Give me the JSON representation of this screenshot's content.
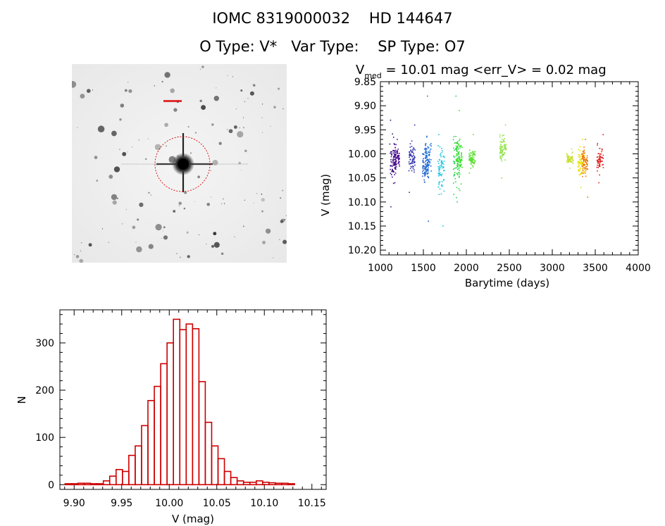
{
  "header": {
    "line1": "IOMC 8319000032    HD 144647",
    "line2": "O Type: V*   Var Type:    SP Type: O7"
  },
  "lightcurve_title": {
    "prefix": "V",
    "subscript": "med",
    "rest": " = 10.01 mag <err_V> = 0.02 mag"
  },
  "chart_data": [
    {
      "type": "scatter",
      "title": "",
      "xlabel": "Barytime (days)",
      "ylabel": "V (mag)",
      "xlim": [
        1000,
        4000
      ],
      "ylim": [
        10.21,
        9.85
      ],
      "y_inverted": true,
      "xticks": [
        1000,
        1500,
        2000,
        2500,
        3000,
        3500,
        4000
      ],
      "xtick_labels": [
        "1000",
        "1500",
        "2000",
        "2500",
        "3000",
        "3500",
        "4000"
      ],
      "yticks": [
        9.85,
        9.9,
        9.95,
        10.0,
        10.05,
        10.1,
        10.15,
        10.2
      ],
      "ytick_labels": [
        "9.85",
        "9.90",
        "9.95",
        "10.00",
        "10.05",
        "10.10",
        "10.15",
        "10.20"
      ],
      "series": [
        {
          "x": 1140,
          "ymin": 9.93,
          "ymax": 10.11,
          "center": 10.02,
          "color": "#3d0a86"
        },
        {
          "x": 1180,
          "ymin": 9.97,
          "ymax": 10.06,
          "center": 10.01,
          "color": "#4b0e8f"
        },
        {
          "x": 1360,
          "ymin": 9.94,
          "ymax": 10.08,
          "center": 10.01,
          "color": "#2f2fa8"
        },
        {
          "x": 1520,
          "ymin": 9.99,
          "ymax": 10.14,
          "center": 10.02,
          "color": "#1e5fc8"
        },
        {
          "x": 1550,
          "ymin": 9.88,
          "ymax": 10.04,
          "center": 10.0,
          "color": "#1e73d8"
        },
        {
          "x": 1700,
          "ymin": 9.96,
          "ymax": 10.15,
          "center": 10.03,
          "color": "#18c4e0"
        },
        {
          "x": 1880,
          "ymin": 9.88,
          "ymax": 10.1,
          "center": 10.02,
          "color": "#22d44a"
        },
        {
          "x": 1910,
          "ymin": 9.91,
          "ymax": 10.07,
          "center": 10.01,
          "color": "#33e020"
        },
        {
          "x": 2060,
          "ymin": 9.96,
          "ymax": 10.04,
          "center": 10.01,
          "color": "#5ae030"
        },
        {
          "x": 2420,
          "ymin": 9.94,
          "ymax": 10.05,
          "center": 9.99,
          "color": "#8be040"
        },
        {
          "x": 3200,
          "ymin": 9.99,
          "ymax": 10.03,
          "center": 10.01,
          "color": "#c9e030"
        },
        {
          "x": 3330,
          "ymin": 9.97,
          "ymax": 10.07,
          "center": 10.02,
          "color": "#e8e000"
        },
        {
          "x": 3370,
          "ymin": 9.97,
          "ymax": 10.09,
          "center": 10.02,
          "color": "#f07000"
        },
        {
          "x": 3550,
          "ymin": 9.96,
          "ymax": 10.06,
          "center": 10.01,
          "color": "#e02020"
        }
      ]
    },
    {
      "type": "bar",
      "title": "",
      "xlabel": "V (mag)",
      "ylabel": "N",
      "xlim": [
        9.885,
        10.165
      ],
      "ylim": [
        -10,
        370
      ],
      "xticks": [
        9.9,
        9.95,
        10.0,
        10.05,
        10.1,
        10.15
      ],
      "xtick_labels": [
        "9.90",
        "9.95",
        "10.00",
        "10.05",
        "10.10",
        "10.15"
      ],
      "yticks": [
        0,
        100,
        200,
        300
      ],
      "ytick_labels": [
        "0",
        "100",
        "200",
        "300"
      ],
      "color": "#cc0000",
      "bin_width": 0.0067,
      "bin_start": 9.8905,
      "values": [
        2,
        2,
        3,
        3,
        2,
        2,
        8,
        18,
        32,
        28,
        62,
        82,
        125,
        178,
        208,
        256,
        300,
        350,
        328,
        340,
        330,
        218,
        132,
        82,
        55,
        28,
        15,
        8,
        5,
        5,
        8,
        5,
        4,
        3,
        3,
        2
      ]
    }
  ],
  "colors": {
    "histogram": "#cc0000",
    "marker": "#dd0000",
    "axis": "#000000"
  }
}
